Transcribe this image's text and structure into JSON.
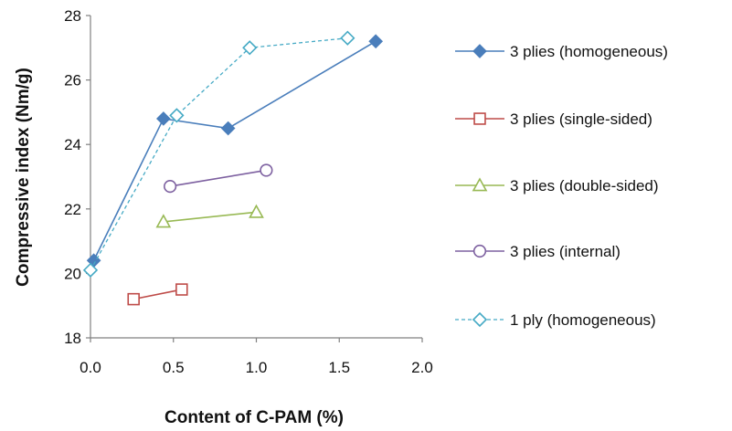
{
  "chart_data": {
    "type": "scatter",
    "title": "",
    "xlabel": "Content of C-PAM (%)",
    "ylabel": "Compressive index (Nm/g)",
    "xlim": [
      0.0,
      2.0
    ],
    "ylim": [
      18,
      28
    ],
    "xticks": [
      0.0,
      0.5,
      1.0,
      1.5,
      2.0
    ],
    "xtick_labels": [
      "0.0",
      "0.5",
      "1.0",
      "1.5",
      "2.0"
    ],
    "yticks": [
      18,
      20,
      22,
      24,
      26,
      28
    ],
    "ytick_labels": [
      "18",
      "20",
      "22",
      "24",
      "26",
      "28"
    ],
    "grid": false,
    "legend_position": "right",
    "series": [
      {
        "name": "3 plies (homogeneous)",
        "color": "#4A7EBB",
        "marker": "diamond-filled",
        "line_style": "solid",
        "x": [
          0.02,
          0.44,
          0.83,
          1.72
        ],
        "y": [
          20.4,
          24.8,
          24.5,
          27.2
        ]
      },
      {
        "name": "3 plies  (single-sided)",
        "color": "#BE4B48",
        "marker": "square-open",
        "line_style": "solid",
        "x": [
          0.26,
          0.55
        ],
        "y": [
          19.2,
          19.5
        ]
      },
      {
        "name": "3 plies (double-sided)",
        "color": "#98B954",
        "marker": "triangle-open",
        "line_style": "solid",
        "x": [
          0.44,
          1.0
        ],
        "y": [
          21.6,
          21.9
        ]
      },
      {
        "name": "3 plies (internal)",
        "color": "#7D60A0",
        "marker": "circle-open",
        "line_style": "solid",
        "x": [
          0.48,
          1.06
        ],
        "y": [
          22.7,
          23.2
        ]
      },
      {
        "name": "1 ply (homogeneous)",
        "color": "#46AAC5",
        "marker": "diamond-open",
        "line_style": "dashed",
        "x": [
          0.0,
          0.52,
          0.96,
          1.55
        ],
        "y": [
          20.1,
          24.9,
          27.0,
          27.3
        ]
      }
    ]
  }
}
